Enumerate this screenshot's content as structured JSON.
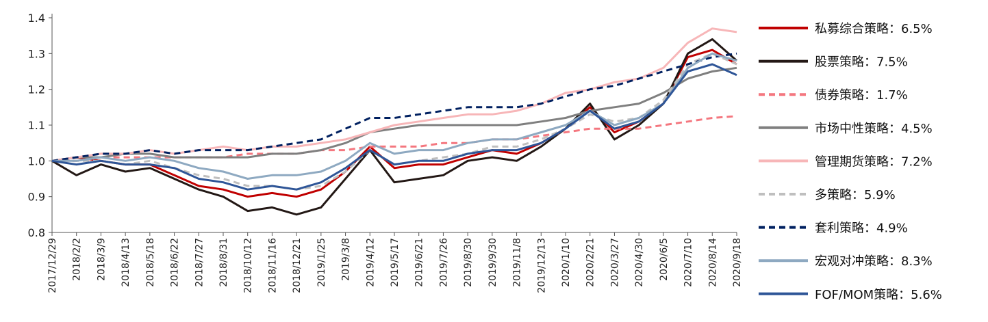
{
  "chart_data": {
    "type": "line",
    "title": "",
    "xlabel": "",
    "ylabel": "",
    "ylim": [
      0.8,
      1.4
    ],
    "y_ticks": [
      "0.8",
      "0.9",
      "1.0",
      "1.1",
      "1.2",
      "1.3",
      "1.4"
    ],
    "x_tick_labels": [
      "2017/12/29",
      "2018/2/2",
      "2018/3/9",
      "2018/4/13",
      "2018/5/18",
      "2018/6/22",
      "2018/7/27",
      "2018/8/31",
      "2018/10/12",
      "2018/11/16",
      "2018/12/21",
      "2019/1/25",
      "2019/3/8",
      "2019/4/12",
      "2019/5/17",
      "2019/6/21",
      "2019/7/26",
      "2019/8/30",
      "2019/9/30",
      "2019/11/8",
      "2019/12/13",
      "2020/1/10",
      "2020/2/21",
      "2020/3/27",
      "2020/4/30",
      "2020/6/5",
      "2020/7/10",
      "2020/8/14",
      "2020/9/18"
    ],
    "grid": false,
    "legend_position": "right",
    "series": [
      {
        "name": "私募综合策略：6.5%",
        "color": "#c00000",
        "dash": "solid",
        "values": [
          1.0,
          1.01,
          1.0,
          0.99,
          0.99,
          0.96,
          0.93,
          0.92,
          0.9,
          0.91,
          0.9,
          0.92,
          0.97,
          1.04,
          0.98,
          0.99,
          0.99,
          1.01,
          1.03,
          1.02,
          1.05,
          1.09,
          1.15,
          1.08,
          1.11,
          1.16,
          1.29,
          1.31,
          1.27
        ]
      },
      {
        "name": "股票策略：7.5%",
        "color": "#231815",
        "dash": "solid",
        "values": [
          1.0,
          0.96,
          0.99,
          0.97,
          0.98,
          0.95,
          0.92,
          0.9,
          0.86,
          0.87,
          0.85,
          0.87,
          0.95,
          1.03,
          0.94,
          0.95,
          0.96,
          1.0,
          1.01,
          1.0,
          1.04,
          1.09,
          1.16,
          1.06,
          1.1,
          1.16,
          1.3,
          1.34,
          1.28
        ]
      },
      {
        "name": "债券策略：1.7%",
        "color": "#f4777f",
        "dash": "dash",
        "values": [
          1.0,
          1.0,
          1.01,
          1.01,
          1.01,
          1.01,
          1.01,
          1.01,
          1.02,
          1.02,
          1.02,
          1.03,
          1.03,
          1.04,
          1.04,
          1.04,
          1.05,
          1.05,
          1.06,
          1.06,
          1.07,
          1.08,
          1.09,
          1.09,
          1.09,
          1.1,
          1.11,
          1.12,
          1.125
        ]
      },
      {
        "name": "市场中性策略：4.5%",
        "color": "#7f7f7f",
        "dash": "solid",
        "values": [
          1.0,
          1.01,
          1.01,
          1.02,
          1.02,
          1.01,
          1.01,
          1.01,
          1.01,
          1.02,
          1.02,
          1.03,
          1.05,
          1.08,
          1.09,
          1.1,
          1.1,
          1.1,
          1.1,
          1.1,
          1.11,
          1.12,
          1.14,
          1.15,
          1.16,
          1.19,
          1.23,
          1.25,
          1.26
        ]
      },
      {
        "name": "管理期货策略：7.2%",
        "color": "#f7b6b8",
        "dash": "solid",
        "values": [
          1.0,
          1.01,
          1.02,
          1.02,
          1.03,
          1.02,
          1.03,
          1.04,
          1.03,
          1.04,
          1.04,
          1.05,
          1.06,
          1.08,
          1.1,
          1.11,
          1.12,
          1.13,
          1.13,
          1.14,
          1.16,
          1.19,
          1.2,
          1.22,
          1.23,
          1.26,
          1.33,
          1.37,
          1.36
        ]
      },
      {
        "name": "多策略：5.9%",
        "color": "#bfbfbf",
        "dash": "dash",
        "values": [
          1.0,
          1.0,
          1.0,
          0.99,
          1.0,
          0.98,
          0.96,
          0.95,
          0.93,
          0.93,
          0.92,
          0.93,
          0.97,
          1.03,
          0.99,
          1.0,
          1.01,
          1.02,
          1.04,
          1.04,
          1.06,
          1.09,
          1.13,
          1.11,
          1.12,
          1.17,
          1.27,
          1.3,
          1.27
        ]
      },
      {
        "name": "套利策略：4.9%",
        "color": "#002060",
        "dash": "dash",
        "values": [
          1.0,
          1.01,
          1.02,
          1.02,
          1.03,
          1.02,
          1.03,
          1.03,
          1.03,
          1.04,
          1.05,
          1.06,
          1.09,
          1.12,
          1.12,
          1.13,
          1.14,
          1.15,
          1.15,
          1.15,
          1.16,
          1.18,
          1.2,
          1.21,
          1.23,
          1.25,
          1.27,
          1.29,
          1.3
        ]
      },
      {
        "name": "宏观对冲策略：8.3%",
        "color": "#8ea9c1",
        "dash": "solid",
        "values": [
          1.0,
          1.0,
          1.01,
          1.0,
          1.01,
          1.0,
          0.98,
          0.97,
          0.95,
          0.96,
          0.96,
          0.97,
          1.0,
          1.05,
          1.02,
          1.03,
          1.03,
          1.05,
          1.06,
          1.06,
          1.08,
          1.1,
          1.14,
          1.1,
          1.12,
          1.16,
          1.26,
          1.3,
          1.28
        ]
      },
      {
        "name": "FOF/MOM策略：5.6%",
        "color": "#2e5597",
        "dash": "solid",
        "values": [
          1.0,
          0.99,
          1.0,
          0.99,
          0.99,
          0.98,
          0.95,
          0.94,
          0.92,
          0.93,
          0.92,
          0.94,
          0.98,
          1.03,
          0.99,
          1.0,
          1.0,
          1.02,
          1.03,
          1.03,
          1.05,
          1.09,
          1.14,
          1.09,
          1.11,
          1.16,
          1.25,
          1.27,
          1.24
        ]
      }
    ]
  }
}
